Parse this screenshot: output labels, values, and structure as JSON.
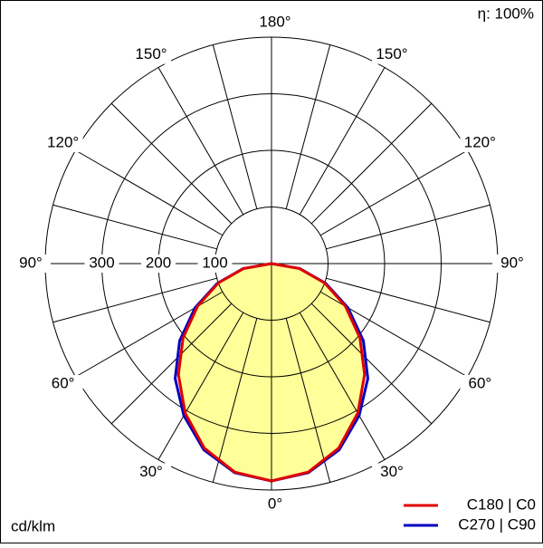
{
  "chart_data": {
    "type": "polar",
    "efficiency_label": "η: 100%",
    "unit_label": "cd/klm",
    "angles": [
      0,
      10,
      20,
      30,
      40,
      50,
      60,
      70,
      80,
      90
    ],
    "series": [
      {
        "name": "C180 | C0",
        "color": "#e00000",
        "values": [
          384,
          374,
          347,
          305,
          256,
          204,
          151,
          100,
          50,
          0
        ]
      },
      {
        "name": "C270 | C90",
        "color": "#0000c0",
        "values": [
          384,
          375,
          350,
          310,
          265,
          212,
          156,
          102,
          51,
          0
        ]
      }
    ],
    "fill_color": "#ffff99",
    "rlim": [
      0,
      400
    ],
    "rticks": [
      100,
      200,
      300
    ],
    "angle_ticks": [
      {
        "value": 0,
        "label": "0°"
      },
      {
        "value": 15,
        "label": null
      },
      {
        "value": 30,
        "label": "30°"
      },
      {
        "value": 45,
        "label": null
      },
      {
        "value": 60,
        "label": "60°"
      },
      {
        "value": 75,
        "label": null
      },
      {
        "value": 90,
        "label": "90°"
      },
      {
        "value": 105,
        "label": null
      },
      {
        "value": 120,
        "label": "120°"
      },
      {
        "value": 135,
        "label": null
      },
      {
        "value": 150,
        "label": "150°"
      },
      {
        "value": 165,
        "label": null
      },
      {
        "value": 180,
        "label": "180°"
      }
    ]
  }
}
